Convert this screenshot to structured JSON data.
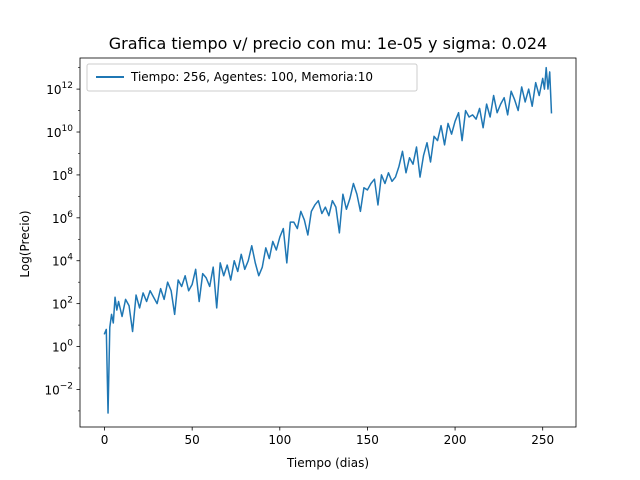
{
  "chart_data": {
    "type": "line",
    "title": "Grafica tiempo v/ precio con mu: 1e-05 y sigma: 0.024",
    "xlabel": "Tiempo (dias)",
    "ylabel": "Log(Precio)",
    "yscale": "log",
    "xlim": [
      -14,
      269
    ],
    "ylim_log10": [
      -3.75,
      13.45
    ],
    "grid": false,
    "legend_placement": "top-left",
    "x_ticks": [
      0,
      50,
      100,
      150,
      200,
      250
    ],
    "y_ticks": [
      {
        "label": "10",
        "exp": "−2",
        "value_log10": -2
      },
      {
        "label": "10",
        "exp": "0",
        "value_log10": 0
      },
      {
        "label": "10",
        "exp": "2",
        "value_log10": 2
      },
      {
        "label": "10",
        "exp": "4",
        "value_log10": 4
      },
      {
        "label": "10",
        "exp": "6",
        "value_log10": 6
      },
      {
        "label": "10",
        "exp": "8",
        "value_log10": 8
      },
      {
        "label": "10",
        "exp": "10",
        "value_log10": 10
      },
      {
        "label": "10",
        "exp": "12",
        "value_log10": 12
      }
    ],
    "series": [
      {
        "name": "Tiempo: 256, Agentes: 100, Memoria:10",
        "color": "#1f77b4",
        "x": [
          0,
          1,
          2,
          3,
          4,
          5,
          6,
          7,
          8,
          10,
          12,
          14,
          16,
          18,
          20,
          22,
          24,
          26,
          28,
          30,
          32,
          34,
          36,
          38,
          40,
          42,
          44,
          46,
          48,
          50,
          52,
          54,
          56,
          58,
          60,
          62,
          64,
          66,
          68,
          70,
          72,
          74,
          76,
          78,
          80,
          82,
          84,
          86,
          88,
          90,
          92,
          94,
          96,
          98,
          100,
          102,
          104,
          106,
          108,
          110,
          112,
          114,
          116,
          118,
          120,
          122,
          124,
          126,
          128,
          130,
          132,
          134,
          136,
          138,
          140,
          142,
          144,
          146,
          148,
          150,
          152,
          154,
          156,
          158,
          160,
          162,
          164,
          166,
          168,
          170,
          172,
          174,
          176,
          178,
          180,
          182,
          184,
          186,
          188,
          190,
          192,
          194,
          196,
          198,
          200,
          202,
          204,
          206,
          208,
          210,
          212,
          214,
          216,
          218,
          220,
          222,
          224,
          226,
          228,
          230,
          232,
          234,
          236,
          238,
          240,
          242,
          244,
          246,
          248,
          250,
          251,
          252,
          253,
          254,
          255
        ],
        "log10_values": [
          0.6,
          0.8,
          -3.1,
          0.9,
          1.5,
          1.1,
          2.3,
          1.7,
          2.1,
          1.4,
          2.2,
          1.9,
          0.7,
          2.4,
          1.8,
          2.5,
          2.1,
          2.6,
          2.3,
          2.0,
          2.7,
          2.2,
          3.0,
          2.6,
          1.5,
          3.1,
          2.8,
          3.3,
          2.6,
          2.9,
          3.6,
          2.1,
          3.4,
          3.2,
          2.8,
          3.7,
          1.8,
          3.9,
          3.3,
          3.8,
          3.1,
          4.0,
          3.5,
          4.3,
          3.6,
          4.0,
          4.7,
          3.9,
          3.3,
          3.7,
          4.6,
          4.1,
          4.9,
          4.5,
          5.1,
          5.5,
          3.9,
          5.8,
          5.8,
          5.5,
          6.3,
          5.9,
          5.2,
          6.3,
          6.6,
          6.8,
          6.2,
          6.5,
          6.1,
          6.8,
          6.5,
          5.3,
          7.1,
          6.4,
          6.9,
          7.6,
          7.1,
          6.3,
          7.4,
          7.3,
          7.6,
          7.8,
          6.6,
          8.0,
          7.6,
          8.1,
          7.7,
          7.9,
          8.4,
          9.1,
          8.1,
          8.8,
          8.5,
          9.3,
          7.9,
          8.9,
          9.5,
          8.6,
          9.8,
          9.6,
          10.3,
          9.4,
          10.4,
          9.9,
          10.5,
          10.9,
          9.6,
          11.0,
          10.7,
          10.8,
          10.6,
          11.1,
          10.2,
          11.3,
          10.7,
          11.7,
          10.9,
          11.3,
          11.6,
          10.8,
          11.9,
          11.5,
          11.0,
          12.1,
          11.4,
          12.0,
          11.2,
          12.3,
          11.7,
          12.5,
          12.0,
          13.0,
          12.0,
          12.8,
          10.9
        ]
      }
    ]
  }
}
